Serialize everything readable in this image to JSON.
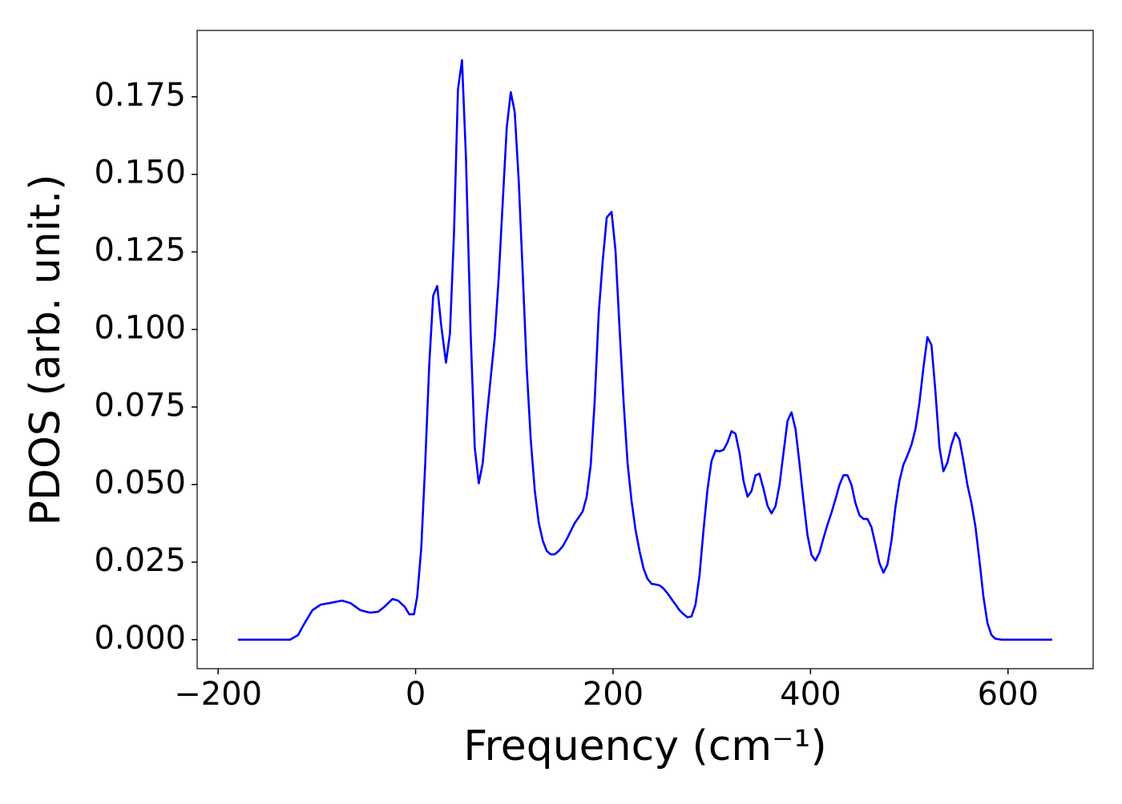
{
  "chart_data": {
    "type": "line",
    "xlabel": "Frequency (cm⁻¹)",
    "ylabel": "PDOS (arb. unit.)",
    "color": "#0000ff",
    "x": [
      -180,
      -127,
      -119,
      -113,
      -104.5,
      -96,
      -87,
      -74.5,
      -66,
      -56,
      -46,
      -38,
      -31.6,
      -23.5,
      -17.8,
      -11,
      -6.5,
      -1.6,
      1.6,
      5.7,
      9.7,
      13.8,
      17.8,
      21.9,
      25.9,
      30.8,
      34.8,
      38.9,
      42.9,
      47,
      51,
      55.9,
      59.9,
      64,
      68,
      72.1,
      80.2,
      84.2,
      88.3,
      92.3,
      96.4,
      100.4,
      104.5,
      108.5,
      112.6,
      116.6,
      120.7,
      124.7,
      128.8,
      132.8,
      136.9,
      140.9,
      145,
      149,
      153.1,
      157.1,
      161.2,
      165.2,
      169.3,
      173.3,
      177.4,
      181.4,
      185.5,
      189.5,
      193.6,
      198.5,
      202.5,
      206.6,
      210.6,
      214.7,
      218.7,
      222.8,
      226.8,
      230.9,
      234.9,
      239,
      243,
      247.1,
      251.1,
      255.2,
      259.2,
      263.3,
      267.3,
      271.4,
      275.4,
      279.5,
      283.5,
      287.6,
      291.6,
      295.7,
      299.7,
      303.8,
      307.8,
      311.9,
      315.9,
      320,
      324,
      328.1,
      332.1,
      336.2,
      340.2,
      344.3,
      348.3,
      352.4,
      356.4,
      360.5,
      364.5,
      368.6,
      372.6,
      376.7,
      380.7,
      384.8,
      388.8,
      392.9,
      396.9,
      401,
      405,
      409.1,
      413.1,
      417.2,
      421.2,
      425.3,
      429.3,
      433.4,
      437.4,
      441.5,
      445.5,
      449.6,
      453.6,
      457.7,
      461.7,
      465.8,
      469.8,
      473.9,
      477.9,
      482,
      486,
      490.1,
      494.1,
      498.2,
      502.2,
      506.3,
      510.3,
      514.4,
      518.4,
      522.5,
      526.5,
      530.6,
      534.6,
      538.7,
      542.7,
      546.8,
      550.8,
      554.9,
      558.9,
      563,
      567,
      571.1,
      575.1,
      579.2,
      583.2,
      587.3,
      593.8,
      644.8
    ],
    "values": [
      0,
      0,
      0.0015,
      0.005,
      0.0095,
      0.0113,
      0.0118,
      0.0126,
      0.0118,
      0.0095,
      0.0087,
      0.009,
      0.0106,
      0.0131,
      0.0126,
      0.0106,
      0.0082,
      0.0082,
      0.0139,
      0.0293,
      0.0564,
      0.0885,
      0.1109,
      0.114,
      0.1014,
      0.0893,
      0.0988,
      0.131,
      0.1773,
      0.1868,
      0.1554,
      0.0975,
      0.062,
      0.0504,
      0.0569,
      0.0718,
      0.0975,
      0.1168,
      0.1413,
      0.165,
      0.1765,
      0.1701,
      0.1477,
      0.1181,
      0.0872,
      0.0646,
      0.0481,
      0.0378,
      0.0319,
      0.0286,
      0.0275,
      0.0275,
      0.0286,
      0.0301,
      0.0324,
      0.035,
      0.0376,
      0.0394,
      0.0414,
      0.0461,
      0.0564,
      0.077,
      0.1053,
      0.122,
      0.1361,
      0.1379,
      0.1253,
      0.1001,
      0.077,
      0.0569,
      0.0448,
      0.0353,
      0.0286,
      0.0229,
      0.0196,
      0.018,
      0.0178,
      0.0175,
      0.0165,
      0.0149,
      0.0131,
      0.0113,
      0.0095,
      0.0082,
      0.0072,
      0.0075,
      0.0113,
      0.0208,
      0.0353,
      0.0486,
      0.0576,
      0.061,
      0.0607,
      0.0612,
      0.0636,
      0.0672,
      0.0664,
      0.0602,
      0.0512,
      0.0461,
      0.0479,
      0.053,
      0.0535,
      0.0486,
      0.0432,
      0.0407,
      0.043,
      0.0499,
      0.0602,
      0.0705,
      0.0733,
      0.0679,
      0.0569,
      0.0448,
      0.0337,
      0.0273,
      0.0255,
      0.0281,
      0.0327,
      0.0371,
      0.0409,
      0.0453,
      0.0499,
      0.053,
      0.053,
      0.0499,
      0.044,
      0.0401,
      0.0389,
      0.0389,
      0.0363,
      0.0306,
      0.0247,
      0.0216,
      0.0242,
      0.0319,
      0.0427,
      0.0512,
      0.0564,
      0.0594,
      0.0628,
      0.0679,
      0.0764,
      0.0878,
      0.0975,
      0.095,
      0.08,
      0.062,
      0.0543,
      0.0571,
      0.0628,
      0.0667,
      0.0646,
      0.0576,
      0.0499,
      0.044,
      0.0365,
      0.0255,
      0.0139,
      0.0054,
      0.0015,
      0.0003,
      0,
      0
    ],
    "xlim": [
      -221.25,
      686.25
    ],
    "ylim": [
      -0.00935,
      0.1964
    ],
    "xticks": [
      {
        "value": -200,
        "label": "−200"
      },
      0,
      200,
      400,
      600
    ],
    "yticks": [
      {
        "value": 0,
        "label": "0.000"
      },
      {
        "value": 0.025,
        "label": "0.025"
      },
      {
        "value": 0.05,
        "label": "0.050"
      },
      {
        "value": 0.075,
        "label": "0.075"
      },
      {
        "value": 0.1,
        "label": "0.100"
      },
      {
        "value": 0.125,
        "label": "0.125"
      },
      {
        "value": 0.15,
        "label": "0.150"
      },
      {
        "value": 0.175,
        "label": "0.175"
      }
    ],
    "grid": false
  }
}
